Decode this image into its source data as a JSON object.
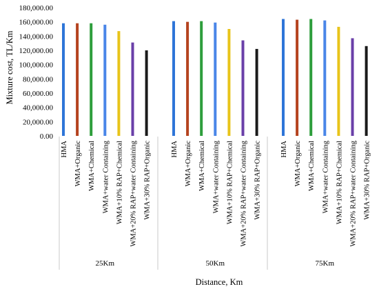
{
  "chart_data": {
    "type": "bar",
    "ylabel": "Mixture cost, TL/Km",
    "xlabel": "Distance, Km",
    "ylim": [
      0,
      180000
    ],
    "yticks": [
      0,
      20000,
      40000,
      60000,
      80000,
      100000,
      120000,
      140000,
      160000,
      180000
    ],
    "ytick_labels": [
      "0.00",
      "20,000.00",
      "40,000.00",
      "60,000.00",
      "80,000.00",
      "100,000.00",
      "120,000.00",
      "140,000.00",
      "160,000.00",
      "180,000.00"
    ],
    "grid": false,
    "legend": "none",
    "groups": [
      {
        "label": "25Km",
        "categories": [
          "HMA",
          "WMA+Organic",
          "WMA+Chemical",
          "WMA+water Containing",
          "WMA+10% RAP+Chemical",
          "WMA+20% RAP+water Containing",
          "WMA+30% RAP+Organic"
        ],
        "values": [
          158000,
          158000,
          158000,
          156000,
          147000,
          131000,
          120000
        ]
      },
      {
        "label": "50Km",
        "categories": [
          "HMA",
          "WMA+Organic",
          "WMA+Chemical",
          "WMA+water Containing",
          "WMA+10% RAP+Chemical",
          "WMA+20% RAP+water Containing",
          "WMA+30% RAP+Organic"
        ],
        "values": [
          161000,
          160000,
          161000,
          159000,
          150000,
          134000,
          122000
        ]
      },
      {
        "label": "75Km",
        "categories": [
          "HMA",
          "WMA+Organic",
          "WMA+Chemical",
          "WMA+water Containing",
          "WMA+10% RAP+Chemical",
          "WMA+20% RAP+water Containing",
          "WMA+30% RAP+Organic"
        ],
        "values": [
          164000,
          163000,
          164000,
          162000,
          153000,
          137000,
          126000
        ]
      }
    ],
    "bar_colors": [
      "#2e75d8",
      "#b5431f",
      "#2e9e3c",
      "#4a86e8",
      "#e8c41a",
      "#6a3fa8",
      "#1a1a1a"
    ]
  }
}
